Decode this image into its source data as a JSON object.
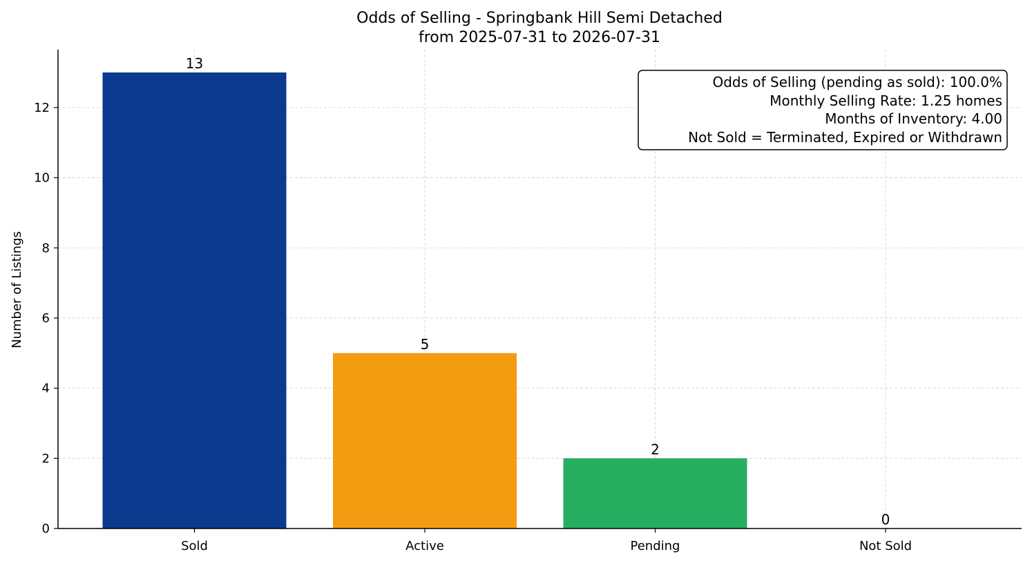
{
  "chart_data": {
    "type": "bar",
    "title_line1": "Odds of Selling - Springbank Hill Semi Detached",
    "title_line2": "from 2025-07-31 to 2026-07-31",
    "xlabel": "",
    "ylabel": "Number of Listings",
    "categories": [
      "Sold",
      "Active",
      "Pending",
      "Not Sold"
    ],
    "values": [
      13,
      5,
      2,
      0
    ],
    "bar_labels": [
      "13",
      "5",
      "2",
      "0"
    ],
    "colors": [
      "#0b3a8e",
      "#f39c12",
      "#27ae60",
      "#c0392b"
    ],
    "ylim": [
      0,
      13.65
    ],
    "yticks": [
      0,
      2,
      4,
      6,
      8,
      10,
      12
    ],
    "grid": true,
    "info_box": [
      "Odds of Selling (pending as sold): 100.0%",
      "Monthly Selling Rate: 1.25 homes",
      "Months of Inventory: 4.00",
      "Not Sold = Terminated, Expired or Withdrawn"
    ],
    "info_box_position": "top-right"
  }
}
